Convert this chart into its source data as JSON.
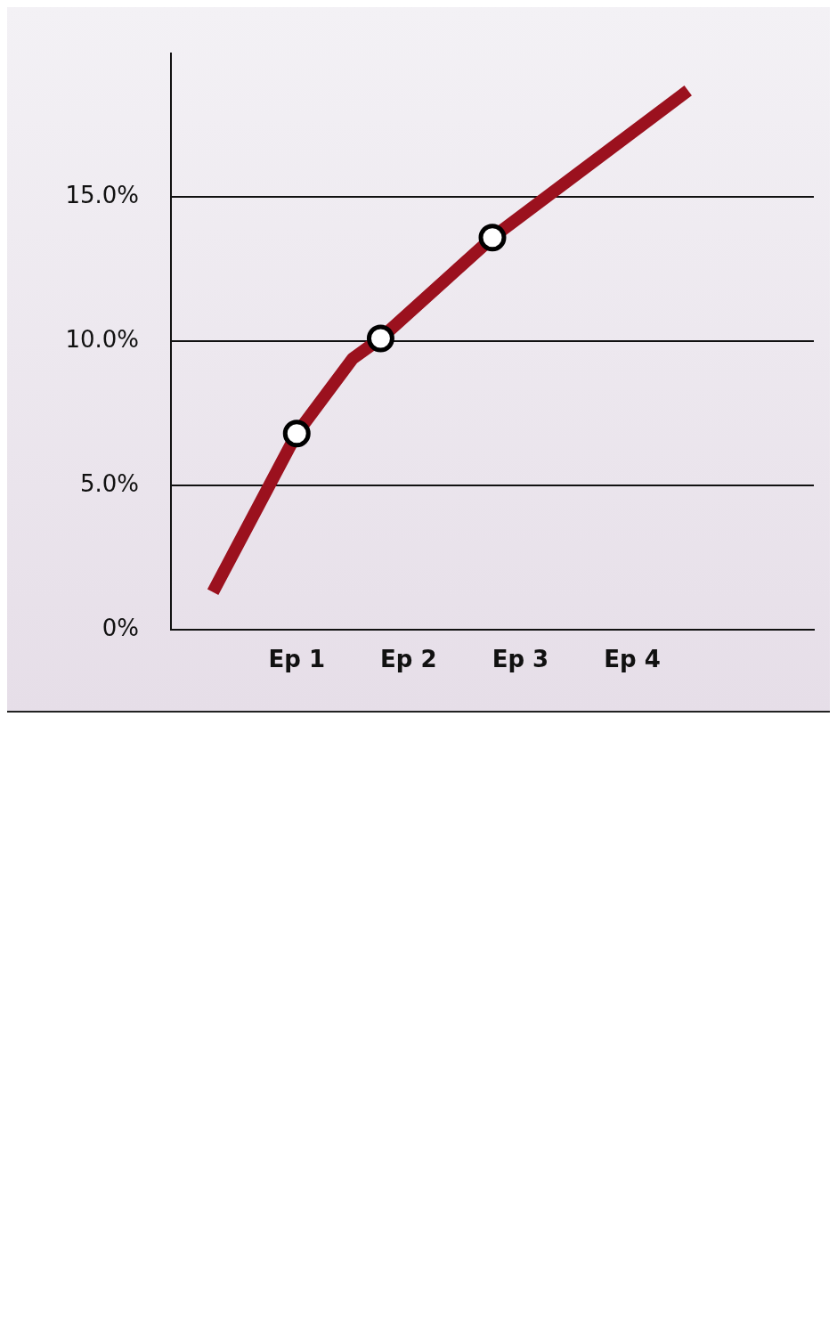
{
  "chart_data": {
    "type": "line",
    "categories": [
      null,
      null,
      null,
      null,
      "Ep 1",
      null,
      null,
      null,
      "Ep 2",
      null,
      null,
      null,
      "Ep 3",
      null,
      null,
      null,
      "Ep 4",
      null,
      null,
      null,
      null,
      null,
      null
    ],
    "ylim": [
      0,
      20
    ],
    "yticks": [
      {
        "value": 0,
        "label": "0%"
      },
      {
        "value": 5,
        "label": "5.0%"
      },
      {
        "value": 10,
        "label": "10.0%"
      },
      {
        "value": 15,
        "label": "15.0%"
      }
    ],
    "grid": "y",
    "legend": false,
    "series": [
      {
        "color": "#9b111e",
        "marker": "none",
        "line_style": "solid",
        "values": [
          null,
          1.3,
          null,
          null,
          6.8,
          null,
          9.4,
          10.1,
          null,
          null,
          null,
          13.6,
          null,
          null,
          null,
          null,
          null,
          null,
          18.7,
          null,
          null,
          null,
          null
        ]
      },
      {
        "type": "scatter",
        "color": "#000000",
        "marker": "circle",
        "values": [
          null,
          null,
          null,
          null,
          6.8,
          null,
          null,
          10.1,
          null,
          null,
          null,
          13.6,
          null,
          null,
          null,
          null,
          null,
          null,
          null,
          null,
          null,
          null,
          null
        ]
      }
    ]
  }
}
